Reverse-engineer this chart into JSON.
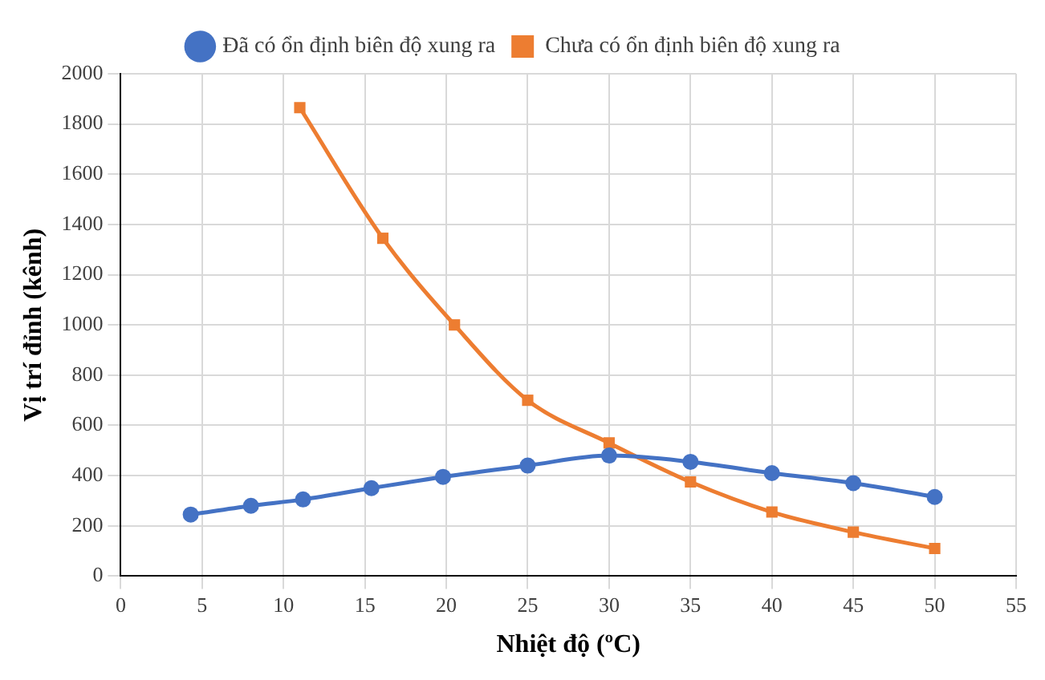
{
  "chart_data": {
    "type": "line",
    "xlabel": "Nhiệt độ (ºC)",
    "ylabel": "Vị trí đỉnh (kênh)",
    "xlim": [
      0,
      55
    ],
    "xticks": [
      0,
      5,
      10,
      15,
      20,
      25,
      30,
      35,
      40,
      45,
      50,
      55
    ],
    "ylim": [
      0,
      2000
    ],
    "yticks": [
      0,
      200,
      400,
      600,
      800,
      1000,
      1200,
      1400,
      1600,
      1800,
      2000
    ],
    "grid": true,
    "legend": "top",
    "series": [
      {
        "name": "Đã có ổn định biên độ xung ra",
        "color": "#4472c4",
        "marker": "circle",
        "x": [
          4.3,
          8,
          11.2,
          15.4,
          19.8,
          25,
          30,
          35,
          40,
          45,
          50
        ],
        "values": [
          245,
          280,
          305,
          350,
          395,
          440,
          480,
          455,
          410,
          370,
          315
        ]
      },
      {
        "name": "Chưa có ổn định biên độ xung ra",
        "color": "#ed7d31",
        "marker": "square",
        "x": [
          11,
          16.1,
          20.5,
          25,
          30,
          35,
          40,
          45,
          50
        ],
        "values": [
          1865,
          1345,
          1000,
          700,
          530,
          375,
          255,
          175,
          110
        ]
      }
    ]
  }
}
